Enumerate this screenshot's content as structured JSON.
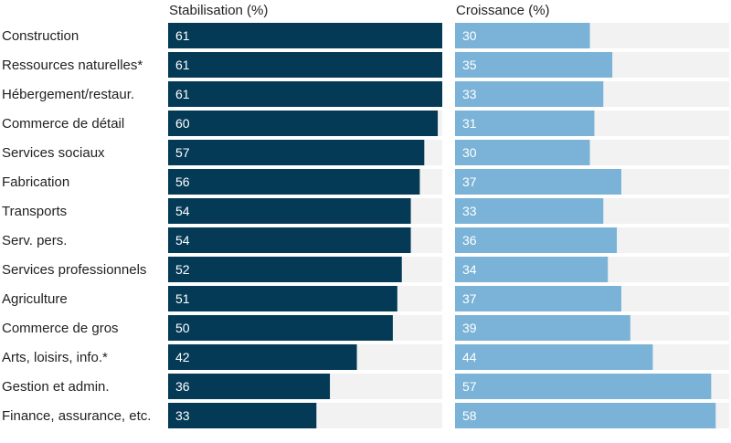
{
  "chart_data": {
    "type": "bar",
    "orientation": "horizontal",
    "layout": "small-multiples",
    "categories": [
      "Construction",
      "Ressources naturelles*",
      "Hébergement/restaur.",
      "Commerce de détail",
      "Services sociaux",
      "Fabrication",
      "Transports",
      "Serv. pers.",
      "Services professionnels",
      "Agriculture",
      "Commerce de gros",
      "Arts, loisirs, info.*",
      "Gestion et admin.",
      "Finance, assurance, etc."
    ],
    "series": [
      {
        "name": "Stabilisation (%)",
        "color": "#053a57",
        "values": [
          61,
          61,
          61,
          60,
          57,
          56,
          54,
          54,
          52,
          51,
          50,
          42,
          36,
          33
        ]
      },
      {
        "name": "Croissance (%)",
        "color": "#7ab3d7",
        "values": [
          30,
          35,
          33,
          31,
          30,
          37,
          33,
          36,
          34,
          37,
          39,
          44,
          57,
          58
        ]
      }
    ],
    "xlim": [
      0,
      61
    ],
    "background_track_color": "#f2f2f2",
    "value_label_color": "#ffffff",
    "grid": false,
    "legend": "none"
  }
}
